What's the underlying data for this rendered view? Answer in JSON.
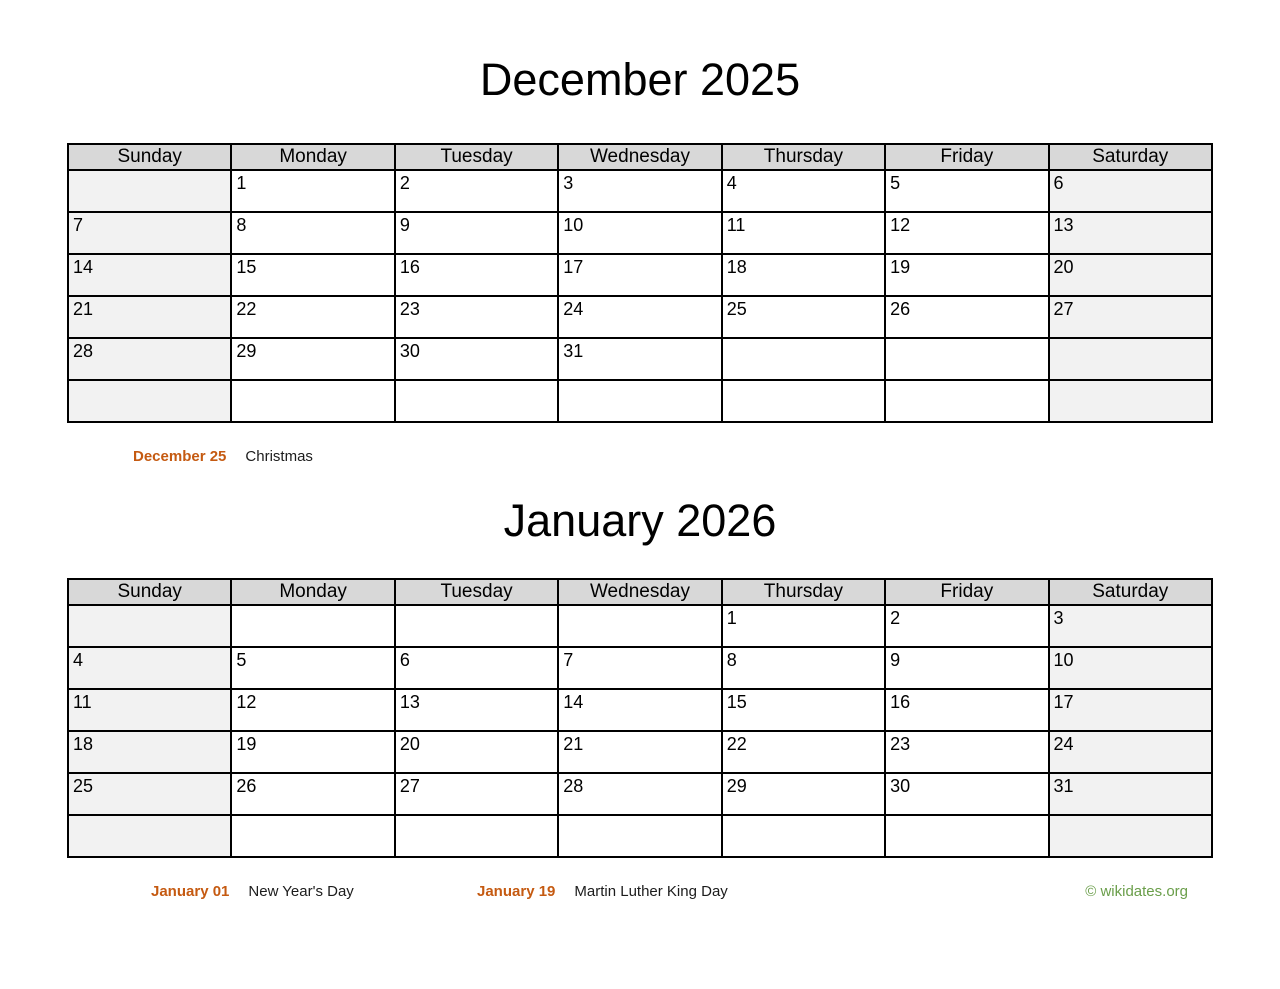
{
  "weekdays": [
    "Sunday",
    "Monday",
    "Tuesday",
    "Wednesday",
    "Thursday",
    "Friday",
    "Saturday"
  ],
  "months": [
    {
      "title": "December 2025",
      "weeks": [
        [
          "",
          "1",
          "2",
          "3",
          "4",
          "5",
          "6"
        ],
        [
          "7",
          "8",
          "9",
          "10",
          "11",
          "12",
          "13"
        ],
        [
          "14",
          "15",
          "16",
          "17",
          "18",
          "19",
          "20"
        ],
        [
          "21",
          "22",
          "23",
          "24",
          "25",
          "26",
          "27"
        ],
        [
          "28",
          "29",
          "30",
          "31",
          "",
          "",
          ""
        ],
        [
          "",
          "",
          "",
          "",
          "",
          "",
          ""
        ]
      ],
      "holidays": [
        {
          "date_label": "December 25",
          "name": "Christmas"
        }
      ]
    },
    {
      "title": "January 2026",
      "weeks": [
        [
          "",
          "",
          "",
          "",
          "1",
          "2",
          "3"
        ],
        [
          "4",
          "5",
          "6",
          "7",
          "8",
          "9",
          "10"
        ],
        [
          "11",
          "12",
          "13",
          "14",
          "15",
          "16",
          "17"
        ],
        [
          "18",
          "19",
          "20",
          "21",
          "22",
          "23",
          "24"
        ],
        [
          "25",
          "26",
          "27",
          "28",
          "29",
          "30",
          "31"
        ],
        [
          "",
          "",
          "",
          "",
          "",
          "",
          ""
        ]
      ],
      "holidays": [
        {
          "date_label": "January 01",
          "name": "New Year's Day"
        },
        {
          "date_label": "January 19",
          "name": "Martin Luther King Day"
        }
      ]
    }
  ],
  "footer": {
    "copyright": "© wikidates.org"
  },
  "colors": {
    "holiday_accent_orange": "#c55a11",
    "copyright_green": "#6a9e4a",
    "header_gray": "#d8d8d8",
    "weekend_gray": "#f2f2f2",
    "border_black": "#000000"
  }
}
